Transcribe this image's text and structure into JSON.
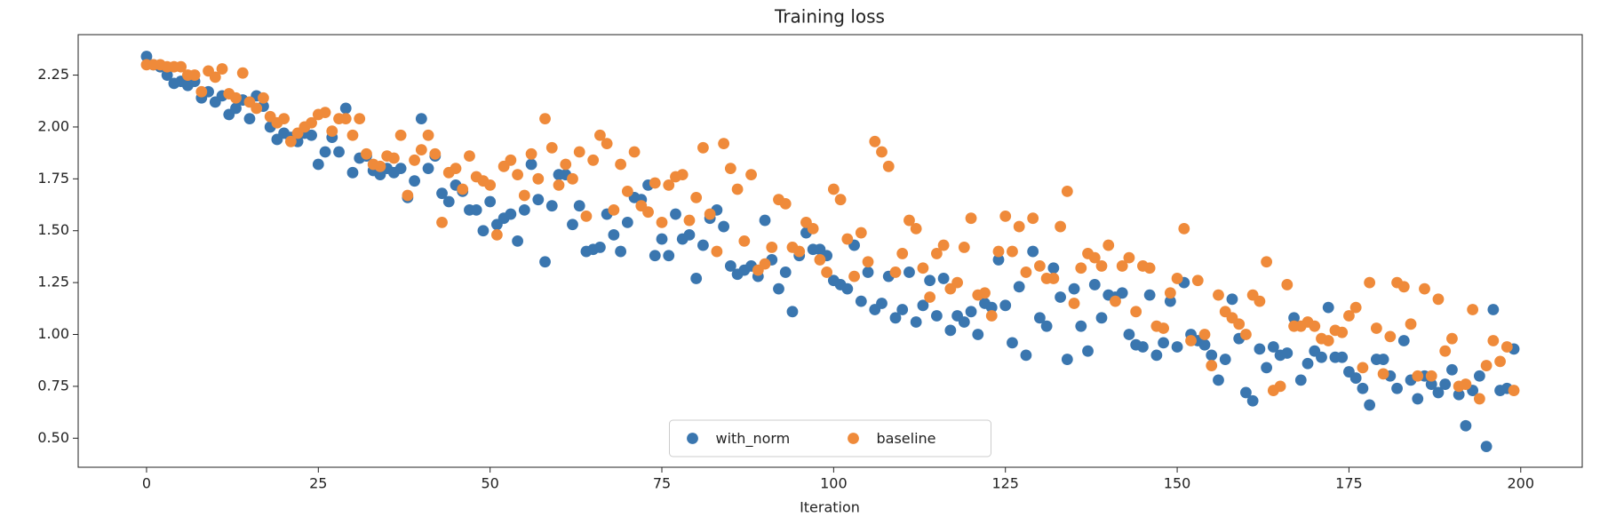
{
  "chart_data": {
    "type": "scatter",
    "title": "Training loss",
    "xlabel": "Iteration",
    "x": [
      0,
      1,
      2,
      3,
      4,
      5,
      6,
      7,
      8,
      9,
      10,
      11,
      12,
      13,
      14,
      15,
      16,
      17,
      18,
      19,
      20,
      21,
      22,
      23,
      24,
      25,
      26,
      27,
      28,
      29,
      30,
      31,
      32,
      33,
      34,
      35,
      36,
      37,
      38,
      39,
      40,
      41,
      42,
      43,
      44,
      45,
      46,
      47,
      48,
      49,
      50,
      51,
      52,
      53,
      54,
      55,
      56,
      57,
      58,
      59,
      60,
      61,
      62,
      63,
      64,
      65,
      66,
      67,
      68,
      69,
      70,
      71,
      72,
      73,
      74,
      75,
      76,
      77,
      78,
      79,
      80,
      81,
      82,
      83,
      84,
      85,
      86,
      87,
      88,
      89,
      90,
      91,
      92,
      93,
      94,
      95,
      96,
      97,
      98,
      99,
      100,
      101,
      102,
      103,
      104,
      105,
      106,
      107,
      108,
      109,
      110,
      111,
      112,
      113,
      114,
      115,
      116,
      117,
      118,
      119,
      120,
      121,
      122,
      123,
      124,
      125,
      126,
      127,
      128,
      129,
      130,
      131,
      132,
      133,
      134,
      135,
      136,
      137,
      138,
      139,
      140,
      141,
      142,
      143,
      144,
      145,
      146,
      147,
      148,
      149,
      150,
      151,
      152,
      153,
      154,
      155,
      156,
      157,
      158,
      159,
      160,
      161,
      162,
      163,
      164,
      165,
      166,
      167,
      168,
      169,
      170,
      171,
      172,
      173,
      174,
      175,
      176,
      177,
      178,
      179,
      180,
      181,
      182,
      183,
      184,
      185,
      186,
      187,
      188,
      189,
      190,
      191,
      192,
      193,
      194,
      195,
      196,
      197,
      198,
      199
    ],
    "series": [
      {
        "name": "with_norm",
        "color": "#3a76af",
        "values": [
          2.34,
          2.3,
          2.29,
          2.25,
          2.21,
          2.22,
          2.2,
          2.22,
          2.14,
          2.17,
          2.12,
          2.15,
          2.06,
          2.09,
          2.13,
          2.04,
          2.15,
          2.1,
          2.0,
          1.94,
          1.97,
          1.95,
          1.93,
          1.97,
          1.96,
          1.82,
          1.88,
          1.95,
          1.88,
          2.09,
          1.78,
          1.85,
          1.86,
          1.79,
          1.77,
          1.8,
          1.78,
          1.8,
          1.66,
          1.74,
          2.04,
          1.8,
          1.86,
          1.68,
          1.64,
          1.72,
          1.69,
          1.6,
          1.6,
          1.5,
          1.64,
          1.53,
          1.56,
          1.58,
          1.45,
          1.6,
          1.82,
          1.65,
          1.35,
          1.62,
          1.77,
          1.77,
          1.53,
          1.62,
          1.4,
          1.41,
          1.42,
          1.58,
          1.48,
          1.4,
          1.54,
          1.66,
          1.65,
          1.72,
          1.38,
          1.46,
          1.38,
          1.58,
          1.46,
          1.48,
          1.27,
          1.43,
          1.56,
          1.6,
          1.52,
          1.33,
          1.29,
          1.31,
          1.33,
          1.28,
          1.55,
          1.36,
          1.22,
          1.3,
          1.11,
          1.38,
          1.49,
          1.41,
          1.41,
          1.38,
          1.26,
          1.24,
          1.22,
          1.43,
          1.16,
          1.3,
          1.12,
          1.15,
          1.28,
          1.08,
          1.12,
          1.3,
          1.06,
          1.14,
          1.26,
          1.09,
          1.27,
          1.02,
          1.09,
          1.06,
          1.11,
          1.0,
          1.15,
          1.13,
          1.36,
          1.14,
          0.96,
          1.23,
          0.9,
          1.4,
          1.08,
          1.04,
          1.32,
          1.18,
          0.88,
          1.22,
          1.04,
          0.92,
          1.24,
          1.08,
          1.19,
          1.18,
          1.2,
          1.0,
          0.95,
          0.94,
          1.19,
          0.9,
          0.96,
          1.16,
          0.94,
          1.25,
          1.0,
          0.97,
          0.95,
          0.9,
          0.78,
          0.88,
          1.17,
          0.98,
          0.72,
          0.68,
          0.93,
          0.84,
          0.94,
          0.9,
          0.91,
          1.08,
          0.78,
          0.86,
          0.92,
          0.89,
          1.13,
          0.89,
          0.89,
          0.82,
          0.79,
          0.74,
          0.66,
          0.88,
          0.88,
          0.8,
          0.74,
          0.97,
          0.78,
          0.69,
          0.8,
          0.76,
          0.72,
          0.76,
          0.83,
          0.71,
          0.56,
          0.73,
          0.8,
          0.46,
          1.12,
          0.73,
          0.74,
          0.93
        ]
      },
      {
        "name": "baseline",
        "color": "#ef8a3a",
        "values": [
          2.3,
          2.3,
          2.3,
          2.29,
          2.29,
          2.29,
          2.25,
          2.25,
          2.17,
          2.27,
          2.24,
          2.28,
          2.16,
          2.14,
          2.26,
          2.12,
          2.09,
          2.14,
          2.05,
          2.02,
          2.04,
          1.93,
          1.97,
          2.0,
          2.02,
          2.06,
          2.07,
          1.98,
          2.04,
          2.04,
          1.96,
          2.04,
          1.87,
          1.82,
          1.81,
          1.86,
          1.85,
          1.96,
          1.67,
          1.84,
          1.89,
          1.96,
          1.87,
          1.54,
          1.78,
          1.8,
          1.7,
          1.86,
          1.76,
          1.74,
          1.72,
          1.48,
          1.81,
          1.84,
          1.77,
          1.67,
          1.87,
          1.75,
          2.04,
          1.9,
          1.72,
          1.82,
          1.75,
          1.88,
          1.57,
          1.84,
          1.96,
          1.92,
          1.6,
          1.82,
          1.69,
          1.88,
          1.62,
          1.59,
          1.73,
          1.54,
          1.72,
          1.76,
          1.77,
          1.55,
          1.66,
          1.9,
          1.58,
          1.4,
          1.92,
          1.8,
          1.7,
          1.45,
          1.77,
          1.31,
          1.34,
          1.42,
          1.65,
          1.63,
          1.42,
          1.4,
          1.54,
          1.51,
          1.36,
          1.3,
          1.7,
          1.65,
          1.46,
          1.28,
          1.49,
          1.35,
          1.93,
          1.88,
          1.81,
          1.3,
          1.39,
          1.55,
          1.51,
          1.32,
          1.18,
          1.39,
          1.43,
          1.22,
          1.25,
          1.42,
          1.56,
          1.19,
          1.2,
          1.09,
          1.4,
          1.57,
          1.4,
          1.52,
          1.3,
          1.56,
          1.33,
          1.27,
          1.27,
          1.52,
          1.69,
          1.15,
          1.32,
          1.39,
          1.37,
          1.33,
          1.43,
          1.16,
          1.33,
          1.37,
          1.11,
          1.33,
          1.32,
          1.04,
          1.03,
          1.2,
          1.27,
          1.51,
          0.97,
          1.26,
          1.0,
          0.85,
          1.19,
          1.11,
          1.08,
          1.05,
          1.0,
          1.19,
          1.16,
          1.35,
          0.73,
          0.75,
          1.24,
          1.04,
          1.04,
          1.06,
          1.04,
          0.98,
          0.97,
          1.02,
          1.01,
          1.09,
          1.13,
          0.84,
          1.25,
          1.03,
          0.81,
          0.99,
          1.25,
          1.23,
          1.05,
          0.8,
          1.22,
          0.8,
          1.17,
          0.92,
          0.98,
          0.75,
          0.76,
          1.12,
          0.69,
          0.85,
          0.97,
          0.87,
          0.94,
          0.73
        ]
      }
    ],
    "xlim": [
      -9.95,
      208.95
    ],
    "xticks": [
      0,
      25,
      50,
      75,
      100,
      125,
      150,
      175,
      200
    ],
    "ylim": [
      0.36,
      2.445
    ],
    "yticks": [
      {
        "value": 0.5,
        "label": "0.50"
      },
      0.75,
      {
        "value": 1.0,
        "label": "1.00"
      },
      1.25,
      {
        "value": 1.5,
        "label": "1.50"
      },
      1.75,
      {
        "value": 2.0,
        "label": "2.00"
      },
      2.25
    ],
    "legend": "lower center",
    "grid": false
  }
}
